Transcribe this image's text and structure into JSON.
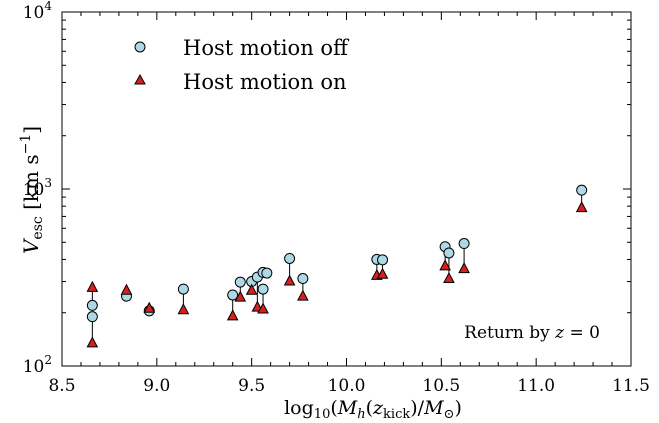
{
  "chart_data": {
    "type": "scatter",
    "xlabel": "log10(Mh(zkick)/M⊙)",
    "ylabel": "Vesc [km s−1]",
    "xlim": [
      8.5,
      11.5
    ],
    "ylim": [
      100,
      10000
    ],
    "y_scale": "log",
    "grid": false,
    "legend_placement": "top-left",
    "x_ticks": [
      8.5,
      9.0,
      9.5,
      10.0,
      10.5,
      11.0,
      11.5
    ],
    "x_tick_labels": [
      "8.5",
      "9.0",
      "9.5",
      "10.0",
      "10.5",
      "11.0",
      "11.5"
    ],
    "y_ticks": [
      100,
      1000,
      10000
    ],
    "y_tick_labels": [
      {
        "base": "10",
        "exp": "2"
      },
      {
        "base": "10",
        "exp": "3"
      },
      {
        "base": "10",
        "exp": "4"
      }
    ],
    "annotation": "Return by z = 0",
    "series": [
      {
        "name": "Host motion off",
        "marker": "circle",
        "color": "#add8e6",
        "points": [
          [
            8.66,
            220
          ],
          [
            8.66,
            190
          ],
          [
            8.84,
            248
          ],
          [
            8.96,
            205
          ],
          [
            9.14,
            272
          ],
          [
            9.4,
            252
          ],
          [
            9.44,
            298
          ],
          [
            9.5,
            300
          ],
          [
            9.53,
            318
          ],
          [
            9.56,
            272
          ],
          [
            9.56,
            338
          ],
          [
            9.58,
            335
          ],
          [
            9.7,
            405
          ],
          [
            9.77,
            312
          ],
          [
            10.16,
            400
          ],
          [
            10.19,
            398
          ],
          [
            10.52,
            472
          ],
          [
            10.54,
            435
          ],
          [
            10.62,
            492
          ],
          [
            11.24,
            985
          ]
        ]
      },
      {
        "name": "Host motion on",
        "marker": "triangle",
        "color": "#d62020",
        "points": [
          [
            8.66,
            278
          ],
          [
            8.66,
            135
          ],
          [
            8.84,
            268
          ],
          [
            8.96,
            212
          ],
          [
            9.14,
            208
          ],
          [
            9.4,
            192
          ],
          [
            9.44,
            245
          ],
          [
            9.5,
            268
          ],
          [
            9.53,
            215
          ],
          [
            9.56,
            210
          ],
          [
            9.7,
            302
          ],
          [
            9.77,
            248
          ],
          [
            10.16,
            325
          ],
          [
            10.19,
            330
          ],
          [
            10.52,
            368
          ],
          [
            10.54,
            312
          ],
          [
            10.62,
            355
          ],
          [
            11.24,
            785
          ]
        ]
      }
    ],
    "connectors": [
      [
        8.66,
        220,
        278
      ],
      [
        8.66,
        190,
        135
      ],
      [
        8.84,
        248,
        268
      ],
      [
        8.96,
        205,
        212
      ],
      [
        9.14,
        272,
        208
      ],
      [
        9.4,
        252,
        192
      ],
      [
        9.44,
        298,
        245
      ],
      [
        9.5,
        300,
        268
      ],
      [
        9.53,
        318,
        215
      ],
      [
        9.56,
        272,
        210
      ],
      [
        9.7,
        405,
        302
      ],
      [
        9.77,
        312,
        248
      ],
      [
        10.16,
        400,
        325
      ],
      [
        10.19,
        398,
        330
      ],
      [
        10.52,
        472,
        368
      ],
      [
        10.54,
        435,
        312
      ],
      [
        10.62,
        492,
        355
      ],
      [
        11.24,
        985,
        785
      ]
    ]
  }
}
